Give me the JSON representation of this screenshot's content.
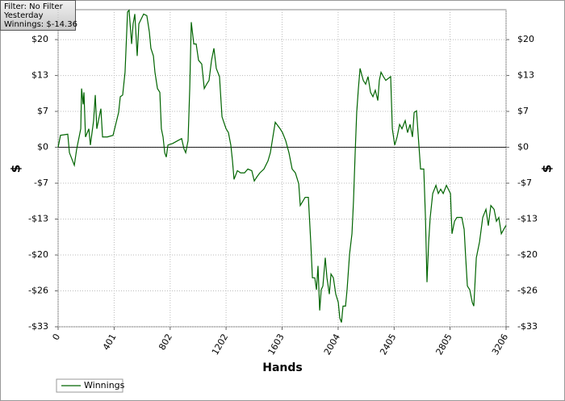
{
  "chart_data": {
    "type": "line",
    "info": [
      "Filter: No Filter",
      "Yesterday",
      "Winnings: $-14.36"
    ],
    "xlabel": "Hands",
    "ylabel": "$",
    "y2label": "$",
    "xlim": [
      0,
      3206
    ],
    "xticks": [
      0,
      401,
      802,
      1202,
      1603,
      2004,
      2405,
      2805,
      3206
    ],
    "ylim": [
      -33,
      25.3
    ],
    "yticks": [
      {
        "value": -33,
        "label": "-$33"
      },
      {
        "value": -26.4,
        "label": "-$26"
      },
      {
        "value": -19.8,
        "label": "-$20"
      },
      {
        "value": -13.2,
        "label": "-$13"
      },
      {
        "value": -6.6,
        "label": "-$7"
      },
      {
        "value": 0,
        "label": "$0"
      },
      {
        "value": 6.6,
        "label": "$7"
      },
      {
        "value": 13.2,
        "label": "$13"
      },
      {
        "value": 19.8,
        "label": "$20"
      }
    ],
    "grid": true,
    "legend": "bottom-left",
    "x": [
      0,
      17,
      69,
      81,
      116,
      133,
      162,
      168,
      179,
      185,
      196,
      220,
      231,
      254,
      266,
      277,
      306,
      318,
      352,
      393,
      433,
      445,
      462,
      479,
      491,
      497,
      508,
      526,
      537,
      549,
      566,
      578,
      612,
      635,
      653,
      664,
      682,
      693,
      711,
      728,
      739,
      751,
      763,
      774,
      786,
      820,
      855,
      884,
      901,
      913,
      930,
      942,
      953,
      971,
      988,
      1005,
      1028,
      1046,
      1063,
      1080,
      1098,
      1115,
      1132,
      1155,
      1173,
      1202,
      1219,
      1236,
      1248,
      1259,
      1283,
      1306,
      1334,
      1358,
      1386,
      1404,
      1421,
      1444,
      1473,
      1502,
      1519,
      1537,
      1554,
      1589,
      1606,
      1629,
      1652,
      1675,
      1698,
      1722,
      1733,
      1768,
      1791,
      1808,
      1820,
      1837,
      1849,
      1860,
      1872,
      1883,
      1895,
      1912,
      1924,
      1941,
      1953,
      1970,
      1987,
      2005,
      2016,
      2028,
      2039,
      2057,
      2068,
      2086,
      2103,
      2114,
      2126,
      2137,
      2149,
      2161,
      2184,
      2201,
      2218,
      2236,
      2253,
      2270,
      2288,
      2299,
      2311,
      2328,
      2345,
      2380,
      2392,
      2409,
      2426,
      2444,
      2461,
      2484,
      2501,
      2519,
      2536,
      2548,
      2565,
      2582,
      2594,
      2617,
      2629,
      2640,
      2652,
      2663,
      2681,
      2704,
      2721,
      2738,
      2756,
      2779,
      2808,
      2819,
      2837,
      2854,
      2889,
      2906,
      2917,
      2929,
      2946,
      2964,
      2975,
      2993,
      3016,
      3039,
      3062,
      3079,
      3097,
      3120,
      3137,
      3154,
      3172,
      3189,
      3206
    ],
    "series": [
      {
        "name": "Winnings",
        "color": "#006400",
        "values": [
          0,
          2.2,
          2.4,
          -1.0,
          -3.3,
          -0.3,
          3.4,
          10.8,
          7.9,
          10.1,
          1.9,
          3.4,
          0.4,
          4.9,
          9.6,
          3.4,
          7.1,
          1.9,
          1.9,
          2.2,
          6.4,
          9.3,
          9.6,
          13.8,
          21.2,
          24.9,
          25.2,
          19.0,
          22.7,
          24.5,
          16.8,
          22.7,
          24.5,
          24.2,
          21.2,
          18.2,
          16.8,
          13.8,
          10.8,
          10.1,
          3.4,
          1.9,
          -1.0,
          -1.8,
          0.4,
          0.7,
          1.2,
          1.6,
          -0.3,
          -1.0,
          1.2,
          10.8,
          23.0,
          19.0,
          19.0,
          16.0,
          15.3,
          10.8,
          11.6,
          12.3,
          16.0,
          18.2,
          14.5,
          13.0,
          5.6,
          3.4,
          2.7,
          0.4,
          -2.5,
          -5.9,
          -4.3,
          -4.7,
          -4.7,
          -4.0,
          -4.3,
          -6.2,
          -5.5,
          -4.7,
          -4.0,
          -2.5,
          -1.0,
          1.9,
          4.6,
          3.4,
          2.7,
          1.2,
          -1.0,
          -4.0,
          -4.7,
          -6.7,
          -10.7,
          -9.2,
          -9.2,
          -17.4,
          -24.0,
          -24.0,
          -26.2,
          -21.8,
          -30.0,
          -26.2,
          -25.5,
          -20.3,
          -24.0,
          -27.0,
          -23.3,
          -24.0,
          -27.0,
          -28.5,
          -31.4,
          -32.2,
          -29.2,
          -29.2,
          -26.2,
          -19.6,
          -15.9,
          -9.9,
          -1.0,
          6.4,
          10.8,
          14.5,
          12.3,
          11.6,
          13.0,
          10.1,
          9.3,
          10.5,
          8.6,
          12.3,
          13.8,
          13.0,
          12.3,
          13.0,
          3.4,
          0.4,
          1.9,
          4.2,
          3.4,
          4.9,
          2.7,
          4.2,
          1.9,
          6.4,
          6.7,
          0.4,
          -4.0,
          -4.0,
          -12.9,
          -24.8,
          -17.4,
          -12.9,
          -8.5,
          -7.0,
          -8.5,
          -7.7,
          -8.5,
          -7.0,
          -8.5,
          -15.9,
          -13.6,
          -12.9,
          -12.9,
          -15.1,
          -20.3,
          -25.5,
          -26.2,
          -28.5,
          -29.2,
          -20.3,
          -17.4,
          -12.9,
          -11.4,
          -14.4,
          -10.7,
          -11.4,
          -13.6,
          -12.9,
          -15.9,
          -15.1,
          -14.36
        ]
      }
    ]
  }
}
